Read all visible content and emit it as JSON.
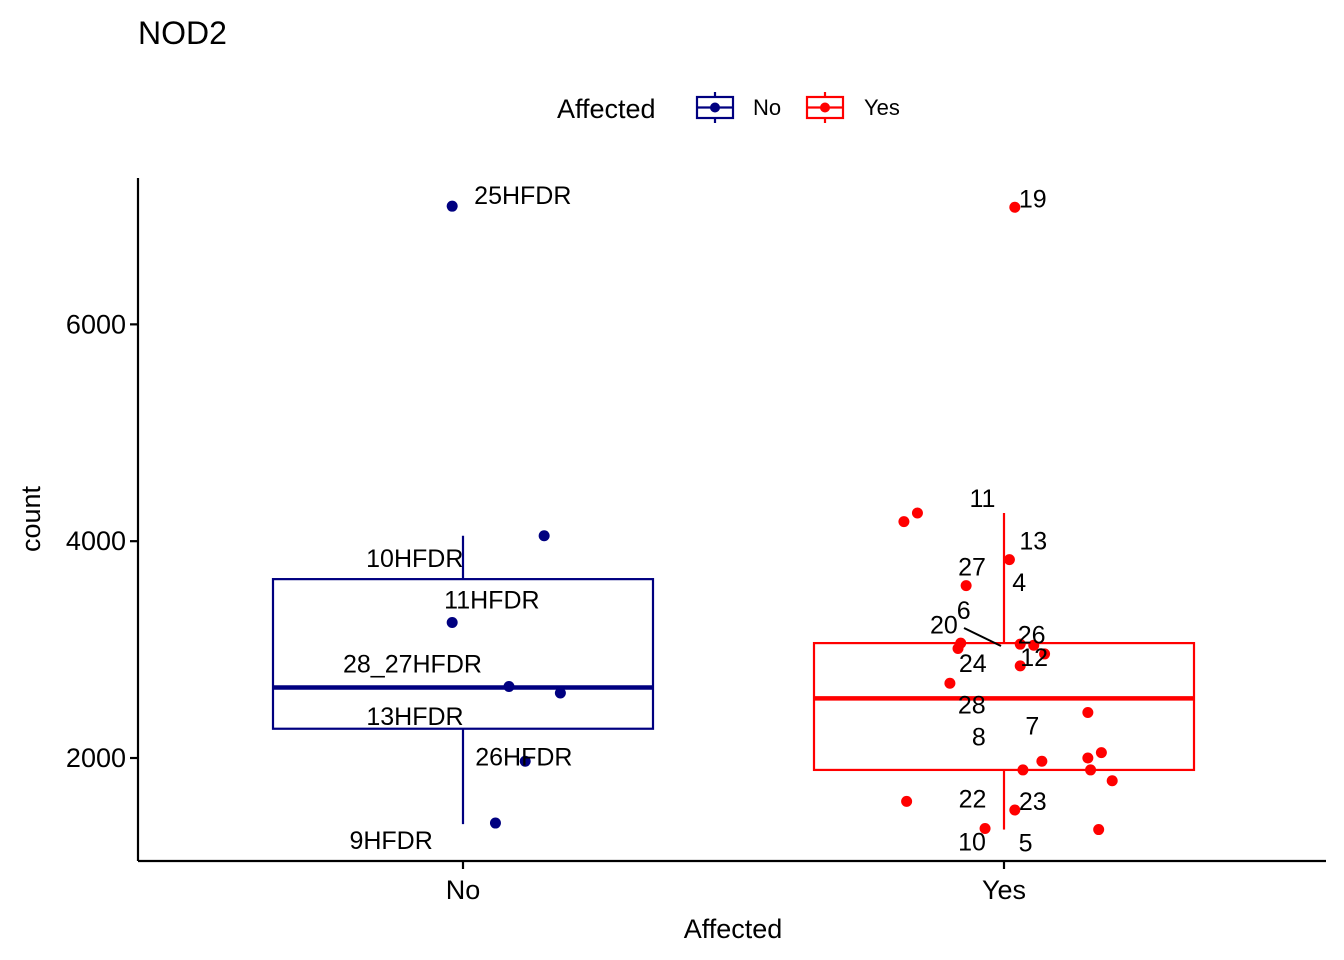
{
  "chart_data": {
    "type": "boxplot",
    "title": "NOD2",
    "xlabel": "Affected",
    "ylabel": "count",
    "categories": [
      "No",
      "Yes"
    ],
    "ylim": [
      1050,
      7350
    ],
    "yticks": [
      2000,
      4000,
      6000
    ],
    "ytick_labels": [
      "2000",
      "4000",
      "6000"
    ],
    "legend": {
      "title": "Affected",
      "position": "top",
      "entries": [
        {
          "label": "No",
          "color": "#000080"
        },
        {
          "label": "Yes",
          "color": "#ff0000"
        }
      ]
    },
    "series": [
      {
        "name": "No",
        "color": "#000080",
        "box": {
          "lower_whisker": 1390,
          "q1": 2270,
          "median": 2650,
          "q3": 3650,
          "upper_whisker": 4050
        },
        "points": [
          {
            "x": -0.02,
            "y": 7090,
            "label": "25HFDR"
          },
          {
            "x": 0.15,
            "y": 4050,
            "label": "10HFDR"
          },
          {
            "x": -0.02,
            "y": 3250,
            "label": "11HFDR"
          },
          {
            "x": 0.085,
            "y": 2660,
            "label": "28_27HFDR"
          },
          {
            "x": 0.18,
            "y": 2600,
            "label": "13HFDR"
          },
          {
            "x": 0.115,
            "y": 1970,
            "label": "26HFDR"
          },
          {
            "x": 0.06,
            "y": 1400,
            "label": "9HFDR"
          }
        ]
      },
      {
        "name": "Yes",
        "color": "#ff0000",
        "box": {
          "lower_whisker": 1340,
          "q1": 1890,
          "median": 2550,
          "q3": 3060,
          "upper_whisker": 4260
        },
        "points": [
          {
            "x": 0.02,
            "y": 7080,
            "label": "19"
          },
          {
            "x": -0.16,
            "y": 4260,
            "label": "11"
          },
          {
            "x": -0.185,
            "y": 4180,
            "label": ""
          },
          {
            "x": 0.01,
            "y": 3830,
            "label": "13"
          },
          {
            "x": -0.07,
            "y": 3590,
            "label": "27"
          },
          {
            "x": 0.03,
            "y": 3050,
            "label": "4"
          },
          {
            "x": -0.08,
            "y": 3060,
            "label": "6"
          },
          {
            "x": -0.085,
            "y": 3010,
            "label": "20"
          },
          {
            "x": 0.055,
            "y": 3040,
            "label": "26"
          },
          {
            "x": 0.075,
            "y": 2960,
            "label": ""
          },
          {
            "x": 0.03,
            "y": 2850,
            "label": "12"
          },
          {
            "x": -0.1,
            "y": 2690,
            "label": "24"
          },
          {
            "x": 0.155,
            "y": 2420,
            "label": "28"
          },
          {
            "x": 0.18,
            "y": 2050,
            "label": "7"
          },
          {
            "x": 0.155,
            "y": 2000,
            "label": ""
          },
          {
            "x": 0.07,
            "y": 1970,
            "label": "8"
          },
          {
            "x": 0.035,
            "y": 1890,
            "label": ""
          },
          {
            "x": 0.16,
            "y": 1890,
            "label": ""
          },
          {
            "x": 0.2,
            "y": 1790,
            "label": ""
          },
          {
            "x": -0.18,
            "y": 1600,
            "label": "22"
          },
          {
            "x": 0.02,
            "y": 1520,
            "label": "23"
          },
          {
            "x": -0.035,
            "y": 1350,
            "label": "10"
          },
          {
            "x": 0.175,
            "y": 1340,
            "label": "5"
          }
        ]
      }
    ]
  }
}
